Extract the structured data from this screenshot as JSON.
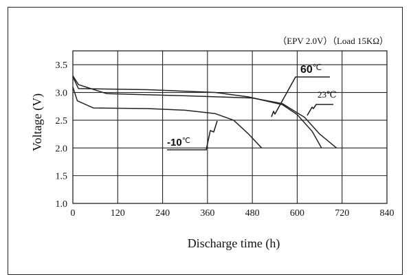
{
  "chart_data": {
    "type": "line",
    "conditions": "（EPV 2.0V）（Load 15KΩ）",
    "xlabel": "Discharge time (h)",
    "ylabel": "Voltage (V)",
    "xlim": [
      0,
      840
    ],
    "ylim": [
      1.0,
      3.75
    ],
    "xticks": [
      0,
      120,
      240,
      360,
      480,
      600,
      720,
      840
    ],
    "yticks": [
      1.0,
      1.5,
      2.0,
      2.5,
      3.0,
      3.5
    ],
    "ytick_labels": [
      "1.0",
      "1.5",
      "2.0",
      "2.5",
      "3.0",
      "3.5"
    ],
    "grid": true,
    "colors": {
      "line": "#222222",
      "grid": "#222222"
    },
    "series": [
      {
        "name": "-10℃",
        "label_prefix": "-10",
        "label_suffix": "℃",
        "points": [
          [
            0,
            3.1
          ],
          [
            12,
            2.85
          ],
          [
            55,
            2.72
          ],
          [
            200,
            2.71
          ],
          [
            300,
            2.68
          ],
          [
            380,
            2.62
          ],
          [
            430,
            2.5
          ],
          [
            470,
            2.25
          ],
          [
            505,
            2.0
          ]
        ]
      },
      {
        "name": "23℃",
        "label_prefix": "",
        "label_suffix": "23℃",
        "points": [
          [
            0,
            3.3
          ],
          [
            15,
            3.14
          ],
          [
            90,
            2.98
          ],
          [
            300,
            2.94
          ],
          [
            480,
            2.9
          ],
          [
            560,
            2.8
          ],
          [
            620,
            2.55
          ],
          [
            660,
            2.25
          ],
          [
            705,
            2.0
          ]
        ]
      },
      {
        "name": "60℃",
        "label_prefix": "60",
        "label_suffix": "℃",
        "points": [
          [
            0,
            3.28
          ],
          [
            15,
            3.07
          ],
          [
            200,
            3.05
          ],
          [
            380,
            3.0
          ],
          [
            470,
            2.92
          ],
          [
            560,
            2.78
          ],
          [
            600,
            2.6
          ],
          [
            640,
            2.3
          ],
          [
            665,
            2.0
          ]
        ]
      }
    ]
  }
}
